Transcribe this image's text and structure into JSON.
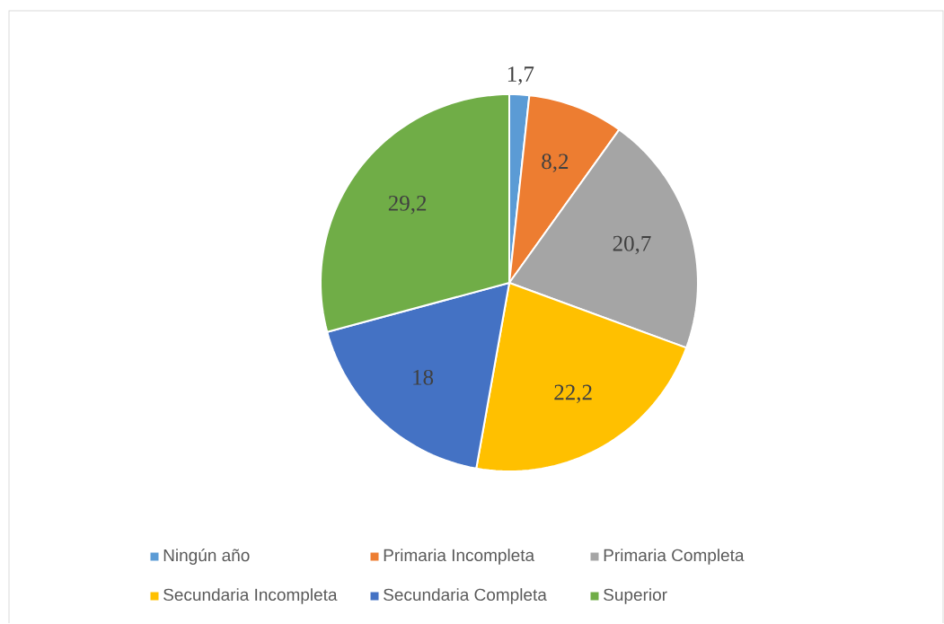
{
  "chart_data": {
    "type": "pie",
    "categories": [
      "Ningún año",
      "Primaria Incompleta",
      "Primaria Completa",
      "Secundaria Incompleta",
      "Secundaria Completa",
      "Superior"
    ],
    "values": [
      1.7,
      8.2,
      20.7,
      22.2,
      18,
      29.2
    ],
    "colors": [
      "#5b9bd5",
      "#ed7d31",
      "#a5a5a5",
      "#ffc000",
      "#4472c4",
      "#70ad47"
    ],
    "value_labels": [
      "1,7",
      "8,2",
      "20,7",
      "22,2",
      "18",
      "29,2"
    ],
    "legend": "bottom"
  }
}
